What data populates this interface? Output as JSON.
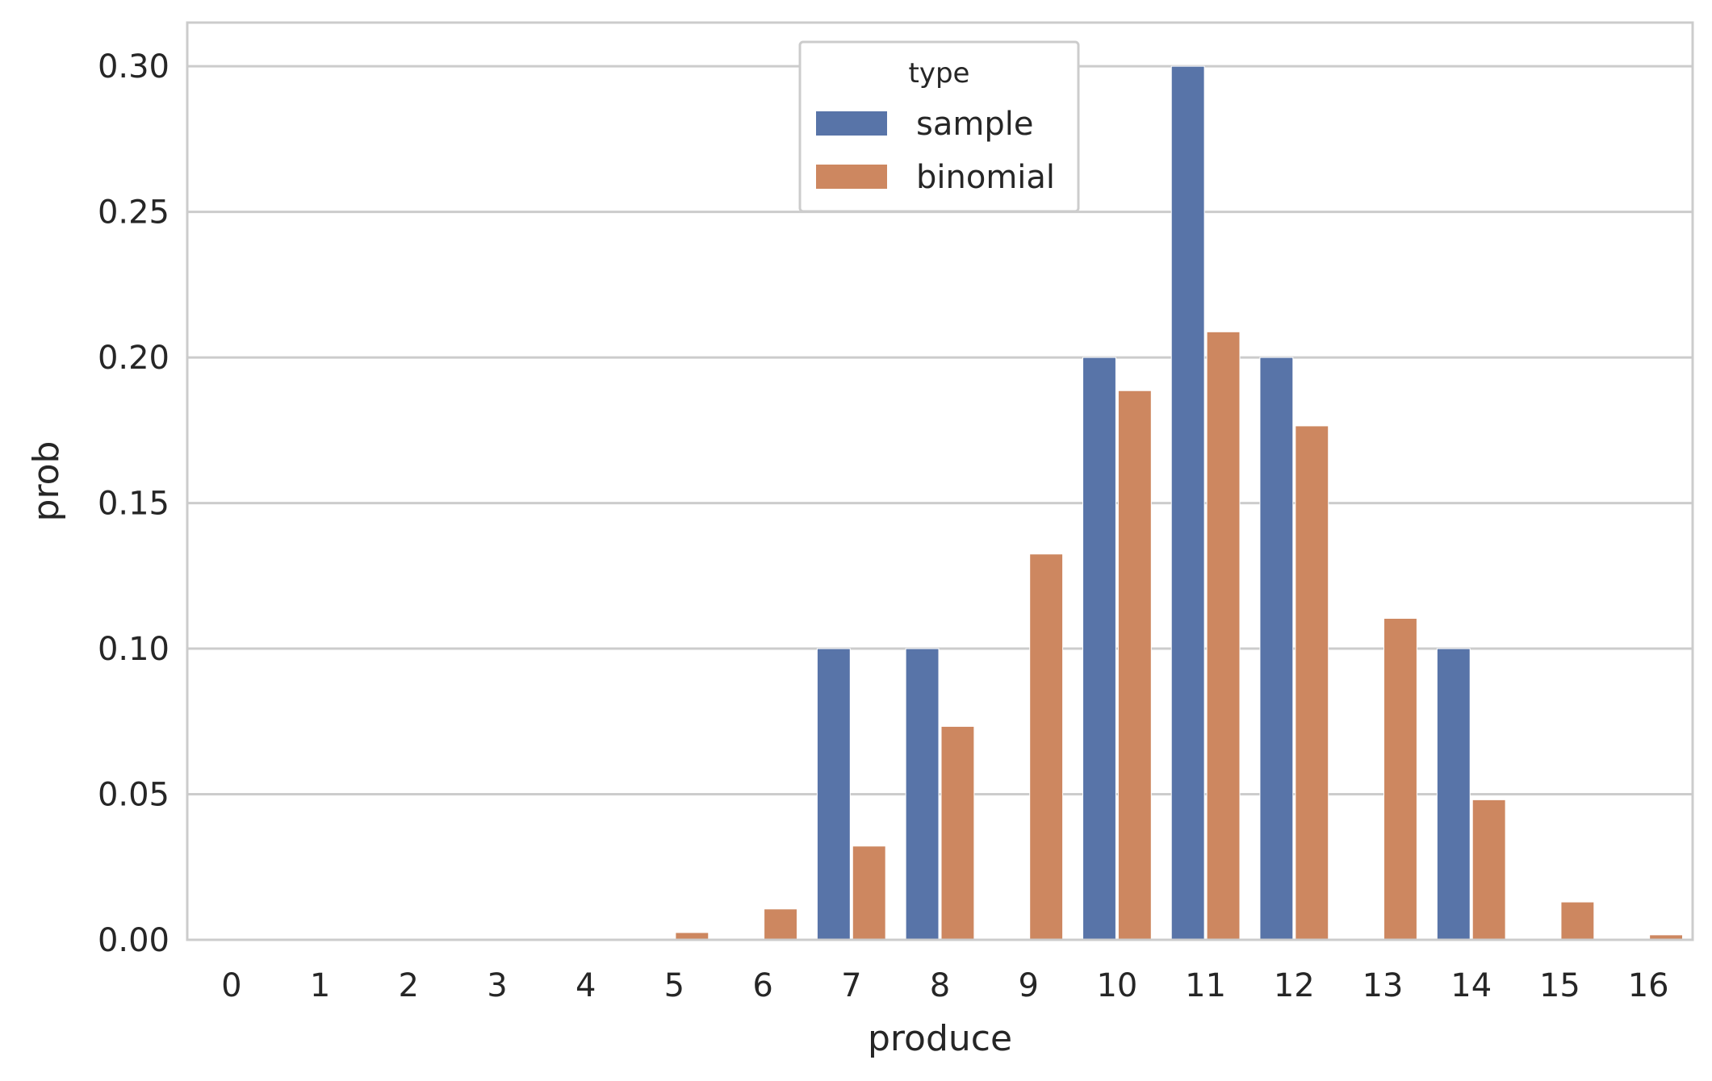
{
  "chart_data": {
    "type": "bar",
    "title": "",
    "xlabel": "produce",
    "ylabel": "prob",
    "categories": [
      "0",
      "1",
      "2",
      "3",
      "4",
      "5",
      "6",
      "7",
      "8",
      "9",
      "10",
      "11",
      "12",
      "13",
      "14",
      "15",
      "16"
    ],
    "ylim": [
      0,
      0.315
    ],
    "yticks": [
      0.0,
      0.05,
      0.1,
      0.15,
      0.2,
      0.25,
      0.3
    ],
    "ytick_labels": [
      "0.00",
      "0.05",
      "0.10",
      "0.15",
      "0.20",
      "0.25",
      "0.30"
    ],
    "grid": true,
    "legend": {
      "title": "type",
      "position": "top-center"
    },
    "series": [
      {
        "name": "sample",
        "color": "#5874a8",
        "values": [
          0,
          0,
          0,
          0,
          0,
          0,
          0,
          0.1,
          0.1,
          0,
          0.2,
          0.3,
          0.2,
          0,
          0.1,
          0,
          0
        ]
      },
      {
        "name": "binomial",
        "color": "#cd8760",
        "values": [
          0.0,
          0.0,
          0.0,
          0.0001,
          0.0005,
          0.0025,
          0.0106,
          0.0322,
          0.0733,
          0.1325,
          0.1886,
          0.2088,
          0.1765,
          0.1104,
          0.0481,
          0.013,
          0.0017
        ]
      }
    ]
  }
}
